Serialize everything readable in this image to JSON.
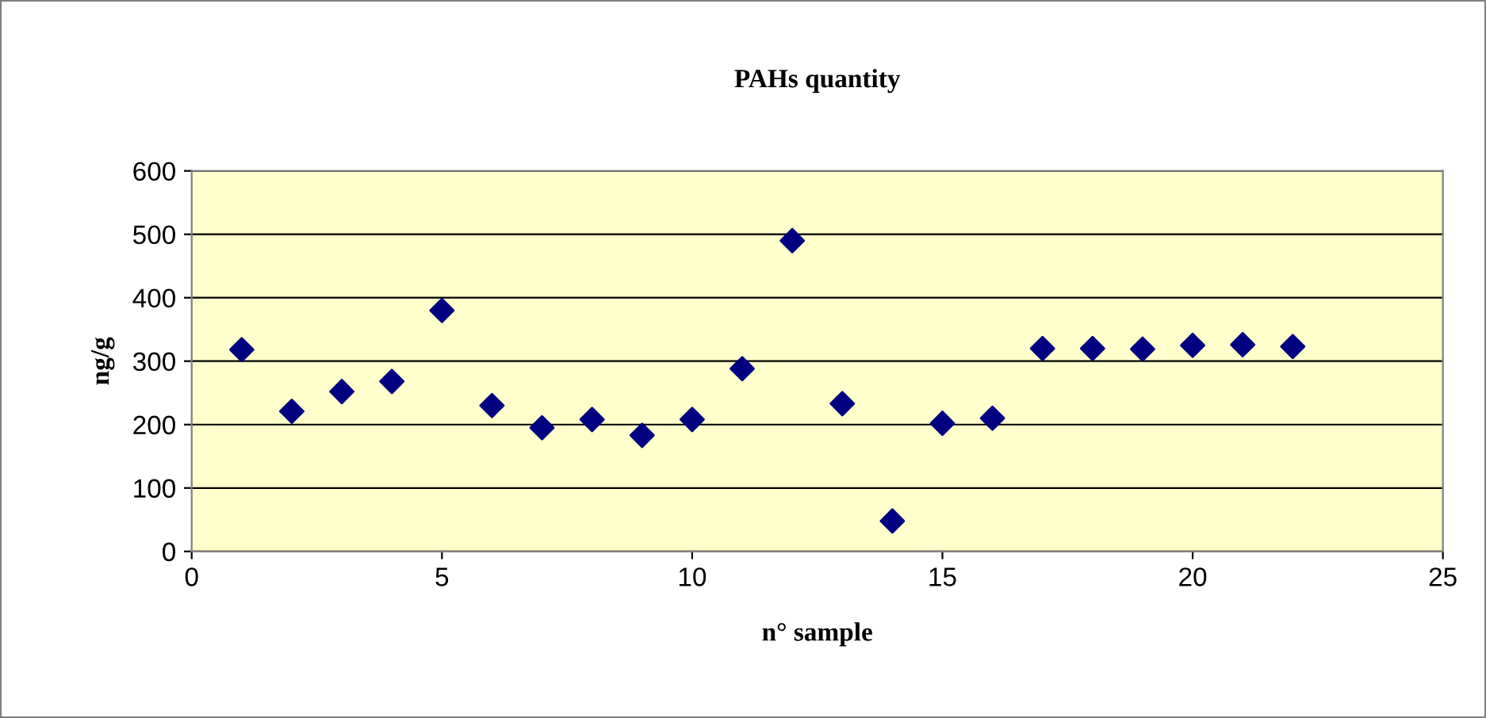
{
  "chart_data": {
    "type": "scatter",
    "title": "PAHs quantity",
    "xlabel": "n° sample",
    "ylabel": "ng/g",
    "x": [
      1,
      2,
      3,
      4,
      5,
      6,
      7,
      8,
      9,
      10,
      11,
      12,
      13,
      14,
      15,
      16,
      17,
      18,
      19,
      20,
      21,
      22
    ],
    "series": [
      {
        "color": "#000080",
        "values": [
          318,
          221,
          252,
          268,
          380,
          230,
          195,
          208,
          183,
          208,
          288,
          490,
          233,
          48,
          202,
          210,
          320,
          320,
          319,
          325,
          326,
          323
        ]
      }
    ],
    "xlim": [
      0,
      25
    ],
    "xticks": [
      0,
      5,
      10,
      15,
      20,
      25
    ],
    "ylim": [
      0,
      600
    ],
    "yticks": [
      0,
      100,
      200,
      300,
      400,
      500,
      600
    ],
    "grid": "y",
    "marker": "diamond"
  }
}
